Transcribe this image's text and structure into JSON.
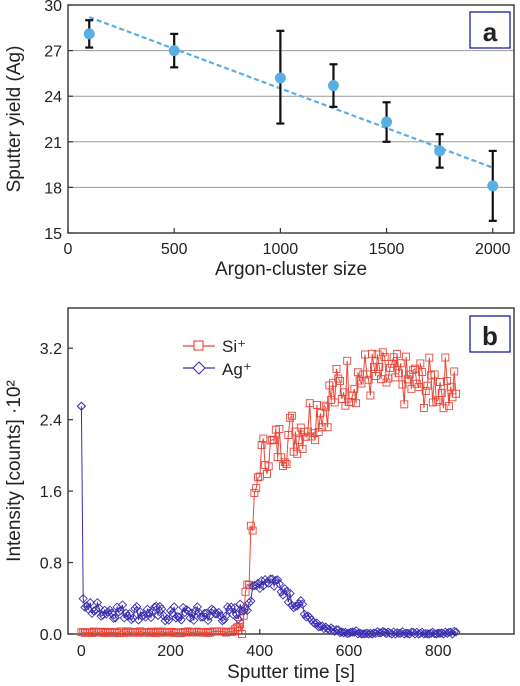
{
  "chart_data": [
    {
      "panel": "a",
      "type": "scatter",
      "xlabel": "Argon-cluster size",
      "ylabel": "Sputter yield (Ag)",
      "xlim": [
        0,
        2100
      ],
      "ylim": [
        15,
        30
      ],
      "xticks": [
        0,
        500,
        1000,
        1500,
        2000
      ],
      "yticks": [
        15,
        18,
        21,
        24,
        27,
        30
      ],
      "grid": "horizontal",
      "series": [
        {
          "marker": "circle",
          "color": "#5aaee6",
          "points": [
            {
              "x": 100,
              "y": 28.1,
              "err_low": 27.2,
              "err_high": 29.0
            },
            {
              "x": 500,
              "y": 27.0,
              "err_low": 25.9,
              "err_high": 28.1
            },
            {
              "x": 1000,
              "y": 25.2,
              "err_low": 22.2,
              "err_high": 28.3
            },
            {
              "x": 1250,
              "y": 24.7,
              "err_low": 23.3,
              "err_high": 26.1
            },
            {
              "x": 1500,
              "y": 22.3,
              "err_low": 21.0,
              "err_high": 23.6
            },
            {
              "x": 1750,
              "y": 20.4,
              "err_low": 19.3,
              "err_high": 21.5
            },
            {
              "x": 2000,
              "y": 18.1,
              "err_low": 15.8,
              "err_high": 20.4
            }
          ]
        }
      ],
      "fit_line": {
        "style": "dashed",
        "color": "#5aaee6",
        "x": [
          100,
          2000
        ],
        "y": [
          29.2,
          19.3
        ]
      }
    },
    {
      "panel": "b",
      "type": "line",
      "xlabel": "Sputter time [s]",
      "ylabel": "Intensity [counts] ·10²",
      "xlim": [
        -30,
        970
      ],
      "ylim": [
        0,
        3.65
      ],
      "xticks": [
        0,
        200,
        400,
        600,
        800
      ],
      "yticks": [
        0.0,
        0.8,
        1.6,
        2.4,
        3.2
      ],
      "ytick_labels": [
        "0.0",
        "0.8",
        "1.6",
        "2.4",
        "3.2"
      ],
      "legend_position": "top-left",
      "series": [
        {
          "name": "Si⁺",
          "color": "#e8473a",
          "marker": "square",
          "x": [
            0,
            100,
            200,
            300,
            340,
            360,
            375,
            390,
            400,
            420,
            450,
            500,
            550,
            600,
            650,
            700,
            750,
            800,
            840
          ],
          "y": [
            0.02,
            0.02,
            0.02,
            0.02,
            0.03,
            0.12,
            0.7,
            1.5,
            1.95,
            2.05,
            2.15,
            2.35,
            2.6,
            2.85,
            2.9,
            2.85,
            2.8,
            2.8,
            2.85
          ]
        },
        {
          "name": "Ag⁺",
          "color": "#3a2fb0",
          "marker": "diamond",
          "x": [
            0,
            3,
            8,
            50,
            100,
            200,
            300,
            350,
            380,
            400,
            420,
            450,
            480,
            520,
            560,
            600,
            700,
            840
          ],
          "y": [
            2.55,
            0.42,
            0.3,
            0.27,
            0.25,
            0.22,
            0.22,
            0.23,
            0.4,
            0.6,
            0.62,
            0.55,
            0.35,
            0.12,
            0.05,
            0.02,
            0.01,
            0.01
          ]
        }
      ]
    }
  ]
}
